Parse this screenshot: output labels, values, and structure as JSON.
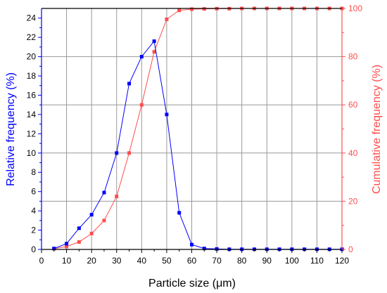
{
  "chart_data": {
    "type": "line",
    "xlabel": "Particle size (μm)",
    "ylabel_left": "Relative frequency (%)",
    "ylabel_right": "Cumulative frequency (%)",
    "xlim": [
      0,
      120
    ],
    "ylim_left": [
      0,
      25
    ],
    "ylim_right": [
      0,
      100
    ],
    "x_ticks": [
      0,
      10,
      20,
      30,
      40,
      50,
      60,
      70,
      80,
      90,
      100,
      110,
      120
    ],
    "y_left_ticks": [
      0,
      2,
      4,
      6,
      8,
      10,
      12,
      14,
      16,
      18,
      20,
      22,
      24
    ],
    "y_right_ticks": [
      0,
      20,
      40,
      60,
      80,
      100
    ],
    "grid": true,
    "x": [
      5,
      10,
      15,
      20,
      25,
      30,
      35,
      40,
      45,
      50,
      55,
      60,
      65,
      70,
      75,
      80,
      85,
      90,
      95,
      100,
      105,
      110,
      115,
      120
    ],
    "series": [
      {
        "axis": "left",
        "color": "#0000ff",
        "marker": "square",
        "values": [
          0.1,
          0.6,
          2.2,
          3.6,
          5.9,
          10.0,
          17.2,
          20.0,
          21.6,
          14.0,
          3.8,
          0.5,
          0.1,
          0.05,
          0.02,
          0.02,
          0.02,
          0.02,
          0.02,
          0.02,
          0.02,
          0.02,
          0.02,
          0.02
        ]
      },
      {
        "axis": "right",
        "color": "#ff4d4d",
        "marker": "square",
        "values": [
          0.3,
          1.2,
          3.1,
          6.6,
          12.0,
          22.0,
          40.0,
          60.0,
          82.0,
          95.5,
          99.2,
          99.7,
          99.8,
          99.9,
          99.9,
          100.0,
          100.0,
          100.0,
          100.0,
          100.0,
          100.0,
          100.0,
          100.0,
          100.0
        ]
      }
    ]
  }
}
